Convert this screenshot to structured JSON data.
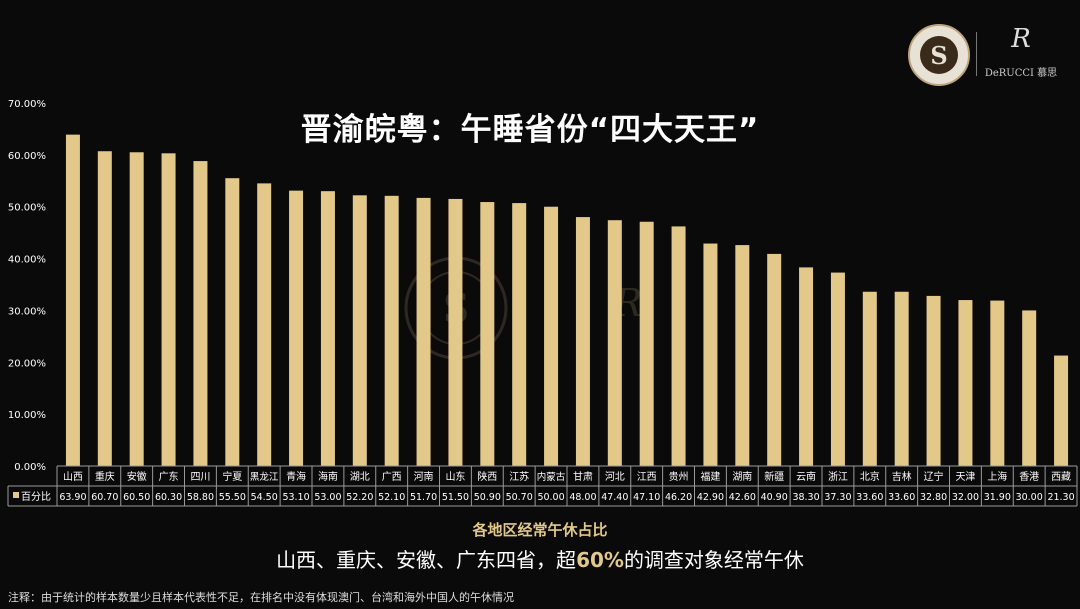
{
  "title": "晋渝皖粤：午睡省份“四大天王”",
  "logo": {
    "seal_icon": "sleep-research-seal-icon",
    "brand_mark": "R",
    "brand_name": "DeRUCCI 慕思"
  },
  "conclusion": {
    "pre": "山西、重庆、安徽、广东四省，超",
    "highlight": "60%",
    "post": "的调查对象经常午休"
  },
  "footnote": "注释：由于统计的样本数量少且样本代表性不足，在排名中没有体现澳门、台湾和海外中国人的午休情况",
  "colors": {
    "bar": "#e2c889",
    "highlight": "#e2c889",
    "background": "#0a0a0a"
  },
  "chart_data": {
    "type": "bar",
    "title": "晋渝皖粤：午睡省份“四大天王”",
    "subtitle": "各地区经常午休占比",
    "xlabel": "",
    "ylabel": "",
    "ylim": [
      0,
      70
    ],
    "yticks": [
      "0.00%",
      "10.00%",
      "20.00%",
      "30.00%",
      "40.00%",
      "50.00%",
      "60.00%",
      "70.00%"
    ],
    "grid": false,
    "legend": "bottom-left (in data table)",
    "categories": [
      "山西",
      "重庆",
      "安徽",
      "广东",
      "四川",
      "宁夏",
      "黑龙江",
      "青海",
      "海南",
      "湖北",
      "广西",
      "河南",
      "山东",
      "陕西",
      "江苏",
      "内蒙古",
      "甘肃",
      "河北",
      "江西",
      "贵州",
      "福建",
      "湖南",
      "新疆",
      "云南",
      "浙江",
      "北京",
      "吉林",
      "辽宁",
      "天津",
      "上海",
      "香港",
      "西藏"
    ],
    "series": [
      {
        "name": "百分比",
        "values": [
          63.9,
          60.7,
          60.5,
          60.3,
          58.8,
          55.5,
          54.5,
          53.1,
          53.0,
          52.2,
          52.1,
          51.7,
          51.5,
          50.9,
          50.7,
          50.0,
          48.0,
          47.4,
          47.1,
          46.2,
          42.9,
          42.6,
          40.9,
          38.3,
          37.3,
          33.6,
          33.6,
          32.8,
          32.0,
          31.9,
          30.0,
          21.3
        ],
        "labels": [
          "63.90",
          "60.70",
          "60.50",
          "60.30",
          "58.80",
          "55.50",
          "54.50",
          "53.10",
          "53.00",
          "52.20",
          "52.10",
          "51.70",
          "51.50",
          "50.90",
          "50.70",
          "50.00",
          "48.00",
          "47.40",
          "47.10",
          "46.20",
          "42.90",
          "42.60",
          "40.90",
          "38.30",
          "37.30",
          "33.60",
          "33.60",
          "32.80",
          "32.00",
          "31.90",
          "30.00",
          "21.30"
        ]
      }
    ]
  }
}
